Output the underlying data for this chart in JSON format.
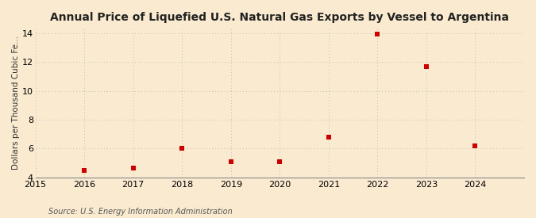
{
  "title": "Annual Price of Liquefied U.S. Natural Gas Exports by Vessel to Argentina",
  "ylabel": "Dollars per Thousand Cubic Fe...",
  "source": "Source: U.S. Energy Information Administration",
  "years": [
    2016,
    2017,
    2018,
    2019,
    2020,
    2021,
    2022,
    2023,
    2024
  ],
  "values": [
    4.5,
    4.65,
    6.0,
    5.1,
    5.1,
    6.8,
    13.9,
    11.65,
    6.2
  ],
  "xlim": [
    2015,
    2025
  ],
  "ylim": [
    4,
    14.4
  ],
  "yticks": [
    4,
    6,
    8,
    10,
    12,
    14
  ],
  "xticks": [
    2015,
    2016,
    2017,
    2018,
    2019,
    2020,
    2021,
    2022,
    2023,
    2024
  ],
  "marker_color": "#cc0000",
  "marker": "s",
  "marker_size": 4,
  "background_color": "#faebd0",
  "grid_color": "#bbbbbb",
  "title_fontsize": 10,
  "label_fontsize": 7.5,
  "tick_fontsize": 8,
  "source_fontsize": 7
}
